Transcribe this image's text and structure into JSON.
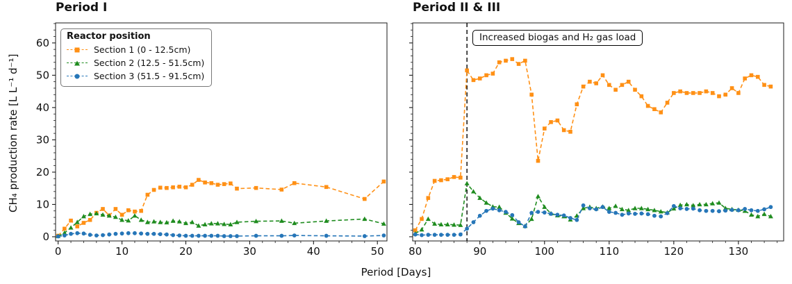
{
  "axes": {
    "xlabel": "Period [Days]",
    "ylabel": "CH₄ production rate [L L⁻¹ d⁻¹]"
  },
  "legend": {
    "title": "Reactor position",
    "position": "upper left"
  },
  "annotation": {
    "text": "Increased biogas and H₂ gas load"
  },
  "chart_data": [
    {
      "type": "line",
      "title": "Period I",
      "xlim": [
        -0.4,
        51.5
      ],
      "ylim": [
        -1.3,
        66.2
      ],
      "xticks": [
        0,
        10,
        20,
        30,
        40,
        50
      ],
      "yticks": [
        0,
        10,
        20,
        30,
        40,
        50,
        60
      ],
      "minor_tick_step": 2,
      "grid": false,
      "ytick_labels": true,
      "x": [
        0,
        1,
        2,
        3,
        4,
        5,
        6,
        7,
        8,
        9,
        10,
        11,
        12,
        13,
        14,
        15,
        16,
        17,
        18,
        19,
        20,
        21,
        22,
        23,
        24,
        25,
        26,
        27,
        28,
        31,
        35,
        37,
        42,
        48,
        51
      ],
      "series": [
        {
          "name": "Section 1 (0 - 12.5cm)",
          "color": "#ff9015",
          "marker": "square",
          "linestyle": "dashed",
          "values": [
            0.3,
            2.5,
            5.0,
            3.2,
            4.3,
            5.2,
            7.4,
            8.6,
            6.6,
            8.6,
            6.8,
            8.2,
            7.8,
            8.0,
            13.0,
            14.5,
            15.2,
            15.1,
            15.3,
            15.5,
            15.3,
            16.1,
            17.6,
            16.8,
            16.6,
            16.1,
            16.3,
            16.5,
            14.9,
            15.1,
            14.6,
            16.6,
            15.4,
            11.7,
            17.1
          ]
        },
        {
          "name": "Section 2 (12.5 - 51.5cm)",
          "color": "#1f8c1f",
          "marker": "triangle",
          "linestyle": "dashed",
          "values": [
            0.2,
            1.2,
            2.8,
            4.5,
            6.3,
            7.0,
            7.2,
            6.8,
            6.5,
            6.1,
            5.2,
            5.0,
            6.5,
            5.2,
            4.5,
            4.7,
            4.5,
            4.4,
            4.9,
            4.7,
            4.2,
            4.5,
            3.4,
            3.8,
            4.1,
            4.1,
            3.9,
            3.8,
            4.5,
            4.8,
            4.9,
            4.2,
            4.9,
            5.5,
            4.0
          ]
        },
        {
          "name": "Section 3 (51.5 - 91.5cm)",
          "color": "#2676b8",
          "marker": "circle",
          "linestyle": "dashed",
          "values": [
            0.1,
            0.4,
            0.9,
            1.1,
            1.0,
            0.6,
            0.4,
            0.5,
            0.7,
            0.9,
            1.0,
            1.1,
            1.1,
            1.0,
            0.9,
            0.9,
            0.8,
            0.7,
            0.5,
            0.4,
            0.3,
            0.3,
            0.3,
            0.3,
            0.3,
            0.3,
            0.2,
            0.2,
            0.2,
            0.3,
            0.3,
            0.4,
            0.3,
            0.2,
            0.4
          ]
        }
      ]
    },
    {
      "type": "line",
      "title": "Period II & III",
      "xlim": [
        79.6,
        137
      ],
      "ylim": [
        -1.3,
        66.2
      ],
      "xticks": [
        80,
        90,
        100,
        110,
        120,
        130
      ],
      "yticks": [
        0,
        10,
        20,
        30,
        40,
        50,
        60
      ],
      "minor_tick_step": 2,
      "grid": false,
      "ytick_labels": false,
      "vline": {
        "x": 88,
        "color": "#000000",
        "style": "dashed"
      },
      "x": [
        80,
        81,
        82,
        83,
        84,
        85,
        86,
        87,
        88,
        89,
        90,
        91,
        92,
        93,
        94,
        95,
        96,
        97,
        98,
        99,
        100,
        101,
        102,
        103,
        104,
        105,
        106,
        107,
        108,
        109,
        110,
        111,
        112,
        113,
        114,
        115,
        116,
        117,
        118,
        119,
        120,
        121,
        122,
        123,
        124,
        125,
        126,
        127,
        128,
        129,
        130,
        131,
        132,
        133,
        134,
        135
      ],
      "series": [
        {
          "name": "Section 1 (0 - 12.5cm)",
          "color": "#ff9015",
          "marker": "square",
          "linestyle": "dashed",
          "values": [
            2.0,
            5.5,
            12.0,
            17.3,
            17.5,
            17.8,
            18.5,
            18.3,
            51.5,
            48.5,
            49.0,
            50.0,
            50.5,
            54.0,
            54.5,
            55.0,
            53.5,
            54.5,
            44.0,
            23.5,
            33.5,
            35.5,
            36.0,
            33.0,
            32.5,
            41.0,
            46.5,
            48.0,
            47.5,
            50.0,
            47.0,
            45.5,
            47.0,
            48.0,
            45.5,
            43.5,
            40.5,
            39.5,
            38.5,
            41.5,
            44.5,
            45.0,
            44.5,
            44.5,
            44.5,
            45.0,
            44.5,
            43.5,
            44.0,
            46.0,
            44.5,
            49.0,
            50.0,
            49.5,
            47.0,
            46.5
          ]
        },
        {
          "name": "Section 2 (12.5 - 51.5cm)",
          "color": "#1f8c1f",
          "marker": "triangle",
          "linestyle": "dashed",
          "values": [
            1.0,
            2.2,
            5.5,
            4.0,
            3.8,
            3.8,
            3.7,
            3.6,
            16.5,
            14.0,
            12.0,
            10.5,
            9.3,
            9.2,
            7.4,
            5.6,
            4.2,
            3.3,
            5.5,
            12.5,
            9.2,
            7.2,
            6.6,
            6.3,
            5.3,
            6.5,
            8.8,
            9.2,
            8.8,
            9.3,
            8.8,
            9.5,
            8.5,
            8.2,
            8.8,
            8.8,
            8.5,
            8.2,
            7.8,
            7.5,
            8.7,
            9.8,
            10.0,
            9.7,
            10.0,
            10.0,
            10.3,
            10.5,
            8.8,
            8.5,
            8.3,
            8.0,
            6.8,
            6.3,
            7.0,
            6.3
          ]
        },
        {
          "name": "Section 3 (51.5 - 91.5cm)",
          "color": "#2676b8",
          "marker": "circle",
          "linestyle": "dashed",
          "values": [
            0.7,
            0.5,
            0.6,
            0.6,
            0.6,
            0.6,
            0.6,
            0.7,
            2.5,
            4.5,
            6.5,
            8.0,
            8.7,
            8.2,
            7.7,
            6.7,
            4.5,
            3.2,
            7.4,
            7.7,
            7.5,
            7.1,
            6.8,
            6.6,
            5.8,
            5.2,
            9.7,
            8.8,
            8.5,
            9.2,
            7.7,
            7.4,
            6.8,
            7.2,
            7.1,
            7.2,
            7.0,
            6.5,
            6.3,
            7.3,
            9.5,
            8.8,
            8.6,
            8.7,
            8.2,
            8.0,
            8.0,
            7.9,
            8.1,
            8.3,
            8.2,
            8.6,
            8.2,
            8.0,
            8.5,
            9.2
          ]
        }
      ]
    }
  ]
}
